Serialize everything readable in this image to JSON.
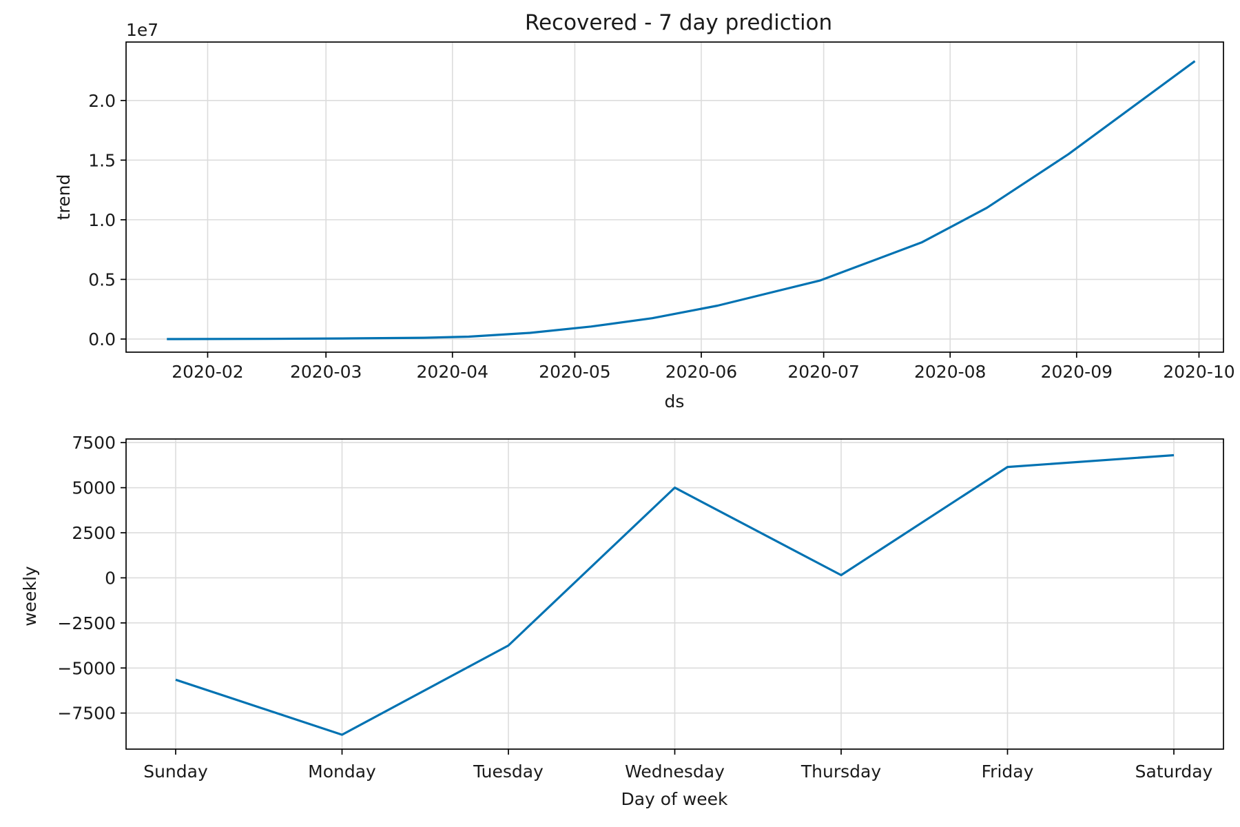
{
  "title": "Recovered - 7 day prediction",
  "chart_data": [
    {
      "type": "line",
      "xlabel": "ds",
      "ylabel": "trend",
      "y_offset_label": "1e7",
      "x_type": "date",
      "xlim": [
        "2020-01-12",
        "2020-10-07"
      ],
      "ylim": [
        -1100000,
        24900000
      ],
      "x_ticks": [
        {
          "value": "2020-02-01",
          "label": "2020-02"
        },
        {
          "value": "2020-03-01",
          "label": "2020-03"
        },
        {
          "value": "2020-04-01",
          "label": "2020-04"
        },
        {
          "value": "2020-05-01",
          "label": "2020-05"
        },
        {
          "value": "2020-06-01",
          "label": "2020-06"
        },
        {
          "value": "2020-07-01",
          "label": "2020-07"
        },
        {
          "value": "2020-08-01",
          "label": "2020-08"
        },
        {
          "value": "2020-09-01",
          "label": "2020-09"
        },
        {
          "value": "2020-10-01",
          "label": "2020-10"
        }
      ],
      "y_ticks": [
        {
          "value": 0,
          "label": "0.0"
        },
        {
          "value": 5000000,
          "label": "0.5"
        },
        {
          "value": 10000000,
          "label": "1.0"
        },
        {
          "value": 15000000,
          "label": "1.5"
        },
        {
          "value": 20000000,
          "label": "2.0"
        }
      ],
      "grid": true,
      "color": "#0072B2",
      "series": [
        {
          "x": [
            "2020-01-22",
            "2020-02-15",
            "2020-03-05",
            "2020-03-25",
            "2020-04-05",
            "2020-04-20",
            "2020-05-05",
            "2020-05-20",
            "2020-06-05",
            "2020-06-30",
            "2020-07-25",
            "2020-08-10",
            "2020-08-30",
            "2020-09-30"
          ],
          "y": [
            0,
            15000,
            50000,
            110000,
            200000,
            520000,
            1050000,
            1750000,
            2800000,
            4900000,
            8100000,
            11000000,
            15500000,
            23300000
          ]
        }
      ]
    },
    {
      "type": "line",
      "xlabel": "Day of week",
      "ylabel": "weekly",
      "ylim": [
        -9500,
        7700
      ],
      "categories": [
        "Sunday",
        "Monday",
        "Tuesday",
        "Wednesday",
        "Thursday",
        "Friday",
        "Saturday"
      ],
      "y_ticks": [
        {
          "value": -7500,
          "label": "−7500"
        },
        {
          "value": -5000,
          "label": "−5000"
        },
        {
          "value": -2500,
          "label": "−2500"
        },
        {
          "value": 0,
          "label": "0"
        },
        {
          "value": 2500,
          "label": "2500"
        },
        {
          "value": 5000,
          "label": "5000"
        },
        {
          "value": 7500,
          "label": "7500"
        }
      ],
      "grid": true,
      "color": "#0072B2",
      "series": [
        {
          "values": [
            -5650,
            -8700,
            -3750,
            5000,
            150,
            6150,
            6800
          ]
        }
      ]
    }
  ]
}
